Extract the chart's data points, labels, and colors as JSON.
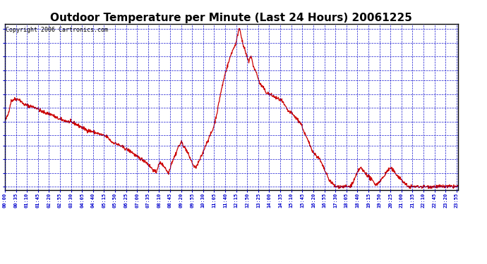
{
  "title": "Outdoor Temperature per Minute (Last 24 Hours) 20061225",
  "copyright": "Copyright 2006 Cartronics.com",
  "background_color": "#FFFFFF",
  "plot_bg_color": "#FFFFFF",
  "line_color": "#CC0000",
  "grid_color": "#0000CC",
  "axis_label_color": "#0000CC",
  "title_color": "#000000",
  "ylim": [
    32.1,
    36.95
  ],
  "yticks": [
    32.2,
    32.6,
    33.0,
    33.4,
    33.7,
    34.1,
    34.5,
    34.9,
    35.3,
    35.6,
    36.0,
    36.4,
    36.8
  ],
  "x_tick_interval": 35,
  "copyright_fontsize": 6,
  "title_fontsize": 11,
  "keypoints": [
    [
      0,
      34.1
    ],
    [
      10,
      34.3
    ],
    [
      20,
      34.7
    ],
    [
      30,
      34.75
    ],
    [
      45,
      34.75
    ],
    [
      60,
      34.6
    ],
    [
      80,
      34.55
    ],
    [
      100,
      34.5
    ],
    [
      115,
      34.4
    ],
    [
      130,
      34.35
    ],
    [
      150,
      34.3
    ],
    [
      165,
      34.2
    ],
    [
      180,
      34.15
    ],
    [
      200,
      34.1
    ],
    [
      220,
      34.05
    ],
    [
      240,
      33.95
    ],
    [
      260,
      33.85
    ],
    [
      280,
      33.8
    ],
    [
      295,
      33.75
    ],
    [
      310,
      33.7
    ],
    [
      325,
      33.65
    ],
    [
      340,
      33.5
    ],
    [
      355,
      33.45
    ],
    [
      365,
      33.4
    ],
    [
      375,
      33.35
    ],
    [
      385,
      33.3
    ],
    [
      395,
      33.25
    ],
    [
      405,
      33.2
    ],
    [
      415,
      33.1
    ],
    [
      425,
      33.05
    ],
    [
      435,
      33.0
    ],
    [
      445,
      32.95
    ],
    [
      455,
      32.85
    ],
    [
      465,
      32.75
    ],
    [
      475,
      32.65
    ],
    [
      480,
      32.6
    ],
    [
      485,
      32.75
    ],
    [
      490,
      32.85
    ],
    [
      495,
      32.9
    ],
    [
      500,
      32.85
    ],
    [
      505,
      32.8
    ],
    [
      510,
      32.75
    ],
    [
      515,
      32.65
    ],
    [
      520,
      32.6
    ],
    [
      525,
      32.75
    ],
    [
      530,
      32.9
    ],
    [
      535,
      33.0
    ],
    [
      540,
      33.1
    ],
    [
      545,
      33.2
    ],
    [
      550,
      33.35
    ],
    [
      555,
      33.4
    ],
    [
      560,
      33.5
    ],
    [
      565,
      33.45
    ],
    [
      570,
      33.35
    ],
    [
      575,
      33.3
    ],
    [
      580,
      33.2
    ],
    [
      585,
      33.1
    ],
    [
      590,
      33.0
    ],
    [
      595,
      32.9
    ],
    [
      600,
      32.8
    ],
    [
      605,
      32.75
    ],
    [
      610,
      32.8
    ],
    [
      615,
      32.9
    ],
    [
      620,
      33.0
    ],
    [
      625,
      33.1
    ],
    [
      630,
      33.2
    ],
    [
      635,
      33.35
    ],
    [
      640,
      33.45
    ],
    [
      645,
      33.55
    ],
    [
      650,
      33.65
    ],
    [
      655,
      33.75
    ],
    [
      660,
      33.85
    ],
    [
      665,
      34.0
    ],
    [
      670,
      34.2
    ],
    [
      675,
      34.4
    ],
    [
      680,
      34.65
    ],
    [
      685,
      34.9
    ],
    [
      690,
      35.1
    ],
    [
      695,
      35.3
    ],
    [
      700,
      35.5
    ],
    [
      705,
      35.65
    ],
    [
      710,
      35.8
    ],
    [
      715,
      35.95
    ],
    [
      720,
      36.1
    ],
    [
      725,
      36.2
    ],
    [
      730,
      36.3
    ],
    [
      735,
      36.4
    ],
    [
      738,
      36.55
    ],
    [
      740,
      36.65
    ],
    [
      742,
      36.75
    ],
    [
      744,
      36.8
    ],
    [
      746,
      36.8
    ],
    [
      748,
      36.75
    ],
    [
      750,
      36.65
    ],
    [
      752,
      36.55
    ],
    [
      754,
      36.45
    ],
    [
      756,
      36.35
    ],
    [
      758,
      36.3
    ],
    [
      762,
      36.2
    ],
    [
      765,
      36.1
    ],
    [
      770,
      35.95
    ],
    [
      775,
      35.85
    ],
    [
      778,
      35.95
    ],
    [
      782,
      36.0
    ],
    [
      786,
      35.85
    ],
    [
      790,
      35.7
    ],
    [
      795,
      35.6
    ],
    [
      800,
      35.5
    ],
    [
      805,
      35.35
    ],
    [
      810,
      35.2
    ],
    [
      820,
      35.1
    ],
    [
      830,
      34.95
    ],
    [
      840,
      34.9
    ],
    [
      850,
      34.85
    ],
    [
      860,
      34.8
    ],
    [
      870,
      34.75
    ],
    [
      880,
      34.7
    ],
    [
      890,
      34.55
    ],
    [
      900,
      34.4
    ],
    [
      910,
      34.35
    ],
    [
      920,
      34.25
    ],
    [
      930,
      34.15
    ],
    [
      940,
      34.05
    ],
    [
      945,
      33.95
    ],
    [
      950,
      33.8
    ],
    [
      955,
      33.7
    ],
    [
      960,
      33.6
    ],
    [
      965,
      33.5
    ],
    [
      970,
      33.4
    ],
    [
      975,
      33.3
    ],
    [
      980,
      33.2
    ],
    [
      990,
      33.1
    ],
    [
      1000,
      33.0
    ],
    [
      1005,
      32.9
    ],
    [
      1010,
      32.8
    ],
    [
      1015,
      32.7
    ],
    [
      1020,
      32.6
    ],
    [
      1025,
      32.5
    ],
    [
      1030,
      32.4
    ],
    [
      1035,
      32.35
    ],
    [
      1040,
      32.3
    ],
    [
      1045,
      32.25
    ],
    [
      1050,
      32.2
    ],
    [
      1055,
      32.2
    ],
    [
      1065,
      32.2
    ],
    [
      1080,
      32.2
    ],
    [
      1095,
      32.2
    ],
    [
      1100,
      32.25
    ],
    [
      1105,
      32.3
    ],
    [
      1110,
      32.4
    ],
    [
      1115,
      32.5
    ],
    [
      1120,
      32.6
    ],
    [
      1125,
      32.7
    ],
    [
      1130,
      32.75
    ],
    [
      1135,
      32.7
    ],
    [
      1140,
      32.65
    ],
    [
      1145,
      32.6
    ],
    [
      1150,
      32.55
    ],
    [
      1155,
      32.5
    ],
    [
      1160,
      32.45
    ],
    [
      1165,
      32.4
    ],
    [
      1170,
      32.35
    ],
    [
      1175,
      32.3
    ],
    [
      1180,
      32.25
    ],
    [
      1185,
      32.3
    ],
    [
      1190,
      32.35
    ],
    [
      1195,
      32.4
    ],
    [
      1200,
      32.45
    ],
    [
      1205,
      32.5
    ],
    [
      1210,
      32.6
    ],
    [
      1215,
      32.65
    ],
    [
      1220,
      32.7
    ],
    [
      1225,
      32.75
    ],
    [
      1230,
      32.7
    ],
    [
      1235,
      32.65
    ],
    [
      1240,
      32.6
    ],
    [
      1245,
      32.55
    ],
    [
      1250,
      32.5
    ],
    [
      1255,
      32.45
    ],
    [
      1260,
      32.4
    ],
    [
      1265,
      32.35
    ],
    [
      1270,
      32.3
    ],
    [
      1275,
      32.25
    ],
    [
      1280,
      32.2
    ],
    [
      1290,
      32.2
    ],
    [
      1300,
      32.2
    ],
    [
      1310,
      32.2
    ],
    [
      1320,
      32.2
    ],
    [
      1330,
      32.2
    ],
    [
      1340,
      32.2
    ],
    [
      1350,
      32.2
    ],
    [
      1360,
      32.2
    ],
    [
      1370,
      32.2
    ],
    [
      1380,
      32.2
    ],
    [
      1390,
      32.2
    ],
    [
      1400,
      32.2
    ],
    [
      1410,
      32.2
    ],
    [
      1420,
      32.2
    ],
    [
      1430,
      32.2
    ],
    [
      1439,
      32.2
    ]
  ]
}
